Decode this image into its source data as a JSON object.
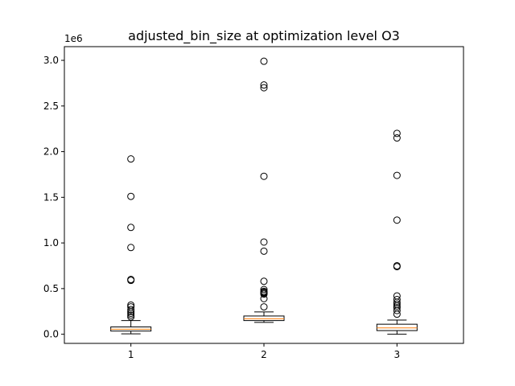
{
  "chart_data": {
    "type": "box",
    "title": "adjusted_bin_size at optimization level O3",
    "xlabel": "",
    "ylabel": "",
    "y_offset_label": "1e6",
    "y_scale_factor": 1000000,
    "ylim": [
      -0.1,
      3.15
    ],
    "y_ticks": [
      0.0,
      0.5,
      1.0,
      1.5,
      2.0,
      2.5,
      3.0
    ],
    "y_tick_labels": [
      "0.0",
      "0.5",
      "1.0",
      "1.5",
      "2.0",
      "2.5",
      "3.0"
    ],
    "categories": [
      "1",
      "2",
      "3"
    ],
    "grid": false,
    "colors": {
      "box": "#000000",
      "median": "#ff7f0e",
      "flier": "#000000"
    },
    "boxes": [
      {
        "label": "1",
        "whisker_low": 0.005,
        "q1": 0.035,
        "median": 0.055,
        "q3": 0.08,
        "whisker_high": 0.15,
        "fliers": [
          1.92,
          1.51,
          1.17,
          0.95,
          0.6,
          0.59,
          0.32,
          0.3,
          0.27,
          0.25,
          0.23,
          0.21,
          0.19
        ]
      },
      {
        "label": "2",
        "whisker_low": 0.13,
        "q1": 0.15,
        "median": 0.17,
        "q3": 0.2,
        "whisker_high": 0.245,
        "fliers": [
          2.99,
          2.73,
          2.7,
          1.73,
          1.01,
          0.91,
          0.58,
          0.49,
          0.47,
          0.46,
          0.45,
          0.44,
          0.39,
          0.3
        ]
      },
      {
        "label": "3",
        "whisker_low": 0.0,
        "q1": 0.04,
        "median": 0.07,
        "q3": 0.11,
        "whisker_high": 0.155,
        "fliers": [
          2.2,
          2.15,
          1.74,
          1.25,
          0.75,
          0.74,
          0.42,
          0.38,
          0.35,
          0.33,
          0.31,
          0.29,
          0.26,
          0.22
        ]
      }
    ]
  }
}
